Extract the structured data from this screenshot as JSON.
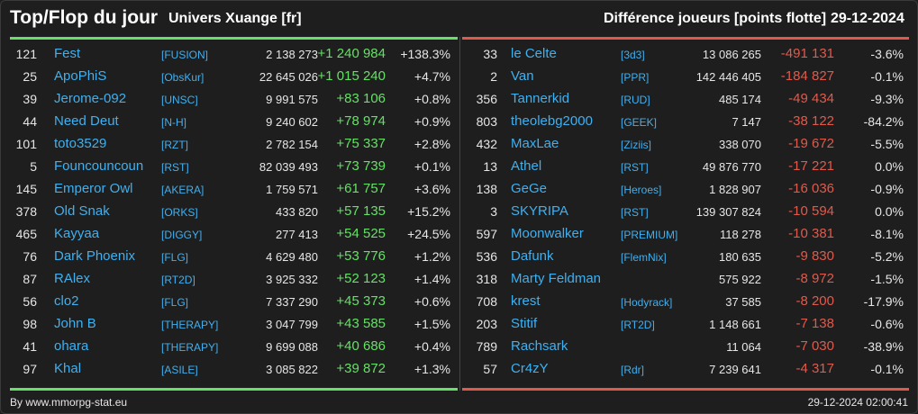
{
  "header": {
    "title": "Top/Flop du jour",
    "server": "Univers Xuange [fr]",
    "diff_label": "Différence joueurs [points flotte]",
    "date": "29-12-2024"
  },
  "colors": {
    "positive": "#66e066",
    "negative": "#e05a4c",
    "link": "#3fb0f0"
  },
  "top": [
    {
      "rank": "121",
      "name": "Fest",
      "guild": "[FUSION]",
      "points": "2 138 273",
      "diff": "+1 240 984",
      "pct": "+138.3%"
    },
    {
      "rank": "25",
      "name": "ApoPhiS",
      "guild": "[ObsKur]",
      "points": "22 645 026",
      "diff": "+1 015 240",
      "pct": "+4.7%"
    },
    {
      "rank": "39",
      "name": "Jerome-092",
      "guild": "[UNSC]",
      "points": "9 991 575",
      "diff": "+83 106",
      "pct": "+0.8%"
    },
    {
      "rank": "44",
      "name": "Need Deut",
      "guild": "[N-H]",
      "points": "9 240 602",
      "diff": "+78 974",
      "pct": "+0.9%"
    },
    {
      "rank": "101",
      "name": "toto3529",
      "guild": "[RZT]",
      "points": "2 782 154",
      "diff": "+75 337",
      "pct": "+2.8%"
    },
    {
      "rank": "5",
      "name": "Founcouncoun",
      "guild": "[RST]",
      "points": "82 039 493",
      "diff": "+73 739",
      "pct": "+0.1%"
    },
    {
      "rank": "145",
      "name": "Emperor Owl",
      "guild": "[AKERA]",
      "points": "1 759 571",
      "diff": "+61 757",
      "pct": "+3.6%"
    },
    {
      "rank": "378",
      "name": "Old Snak",
      "guild": "[ORKS]",
      "points": "433 820",
      "diff": "+57 135",
      "pct": "+15.2%"
    },
    {
      "rank": "465",
      "name": "Kayyaa",
      "guild": "[DIGGY]",
      "points": "277 413",
      "diff": "+54 525",
      "pct": "+24.5%"
    },
    {
      "rank": "76",
      "name": "Dark Phoenix",
      "guild": "[FLG]",
      "points": "4 629 480",
      "diff": "+53 776",
      "pct": "+1.2%"
    },
    {
      "rank": "87",
      "name": "RAlex",
      "guild": "[RT2D]",
      "points": "3 925 332",
      "diff": "+52 123",
      "pct": "+1.4%"
    },
    {
      "rank": "56",
      "name": "clo2",
      "guild": "[FLG]",
      "points": "7 337 290",
      "diff": "+45 373",
      "pct": "+0.6%"
    },
    {
      "rank": "98",
      "name": "John B",
      "guild": "[THERAPY]",
      "points": "3 047 799",
      "diff": "+43 585",
      "pct": "+1.5%"
    },
    {
      "rank": "41",
      "name": "ohara",
      "guild": "[THERAPY]",
      "points": "9 699 088",
      "diff": "+40 686",
      "pct": "+0.4%"
    },
    {
      "rank": "97",
      "name": "Khal",
      "guild": "[ASILE]",
      "points": "3 085 822",
      "diff": "+39 872",
      "pct": "+1.3%"
    }
  ],
  "flop": [
    {
      "rank": "33",
      "name": "le Celte",
      "guild": "[3d3]",
      "points": "13 086 265",
      "diff": "-491 131",
      "pct": "-3.6%"
    },
    {
      "rank": "2",
      "name": "Van",
      "guild": "[PPR]",
      "points": "142 446 405",
      "diff": "-184 827",
      "pct": "-0.1%"
    },
    {
      "rank": "356",
      "name": "Tannerkid",
      "guild": "[RUD]",
      "points": "485 174",
      "diff": "-49 434",
      "pct": "-9.3%"
    },
    {
      "rank": "803",
      "name": "theolebg2000",
      "guild": "[GEEK]",
      "points": "7 147",
      "diff": "-38 122",
      "pct": "-84.2%"
    },
    {
      "rank": "432",
      "name": "MaxLae",
      "guild": "[Ziziis]",
      "points": "338 070",
      "diff": "-19 672",
      "pct": "-5.5%"
    },
    {
      "rank": "13",
      "name": "Athel",
      "guild": "[RST]",
      "points": "49 876 770",
      "diff": "-17 221",
      "pct": "0.0%"
    },
    {
      "rank": "138",
      "name": "GeGe",
      "guild": "[Heroes]",
      "points": "1 828 907",
      "diff": "-16 036",
      "pct": "-0.9%"
    },
    {
      "rank": "3",
      "name": "SKYRIPA",
      "guild": "[RST]",
      "points": "139 307 824",
      "diff": "-10 594",
      "pct": "0.0%"
    },
    {
      "rank": "597",
      "name": "Moonwalker",
      "guild": "[PREMIUM]",
      "points": "118 278",
      "diff": "-10 381",
      "pct": "-8.1%"
    },
    {
      "rank": "536",
      "name": "Dafunk",
      "guild": "[FlemNix]",
      "points": "180 635",
      "diff": "-9 830",
      "pct": "-5.2%"
    },
    {
      "rank": "318",
      "name": "Marty Feldman",
      "guild": "",
      "points": "575 922",
      "diff": "-8 972",
      "pct": "-1.5%"
    },
    {
      "rank": "708",
      "name": "krest",
      "guild": "[Hodyrack]",
      "points": "37 585",
      "diff": "-8 200",
      "pct": "-17.9%"
    },
    {
      "rank": "203",
      "name": "Stitif",
      "guild": "[RT2D]",
      "points": "1 148 661",
      "diff": "-7 138",
      "pct": "-0.6%"
    },
    {
      "rank": "789",
      "name": "Rachsark",
      "guild": "",
      "points": "11 064",
      "diff": "-7 030",
      "pct": "-38.9%"
    },
    {
      "rank": "57",
      "name": "Cr4zY",
      "guild": "[Rdr]",
      "points": "7 239 641",
      "diff": "-4 317",
      "pct": "-0.1%"
    }
  ],
  "footer": {
    "source": "By www.mmorpg-stat.eu",
    "timestamp": "29-12-2024 02:00:41"
  }
}
